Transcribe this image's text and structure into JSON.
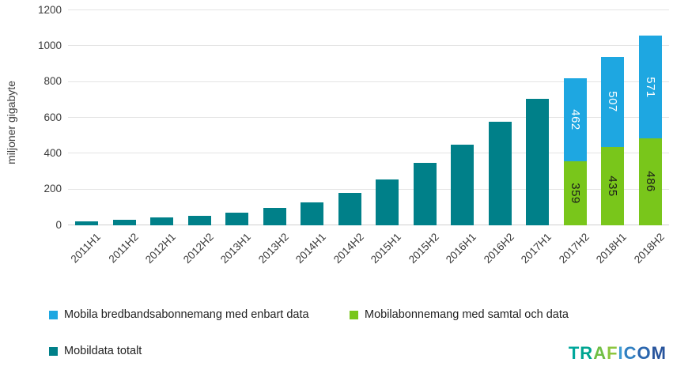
{
  "chart_data": {
    "type": "bar",
    "stacked": true,
    "title": "",
    "xlabel": "",
    "ylabel": "miljoner gigabyte",
    "ylim": [
      0,
      1200
    ],
    "yticks": [
      0,
      200,
      400,
      600,
      800,
      1000,
      1200
    ],
    "grid": true,
    "legend_position": "bottom-left",
    "categories": [
      "2011H1",
      "2011H2",
      "2012H1",
      "2012H2",
      "2013H1",
      "2013H2",
      "2014H1",
      "2014H2",
      "2015H1",
      "2015H2",
      "2016H1",
      "2016H2",
      "2017H1",
      "2017H2",
      "2018H1",
      "2018H2"
    ],
    "series": [
      {
        "name": "Mobildata totalt",
        "color": "#008089",
        "data_labels": false,
        "label_color": "#ffffff",
        "values": [
          21,
          33,
          43,
          53,
          71,
          97,
          127,
          179,
          256,
          347,
          450,
          578,
          707,
          null,
          null,
          null
        ]
      },
      {
        "name": "Mobilabonnemang med samtal och data",
        "color": "#79c61b",
        "data_labels": true,
        "label_color": "#1a1a1a",
        "values": [
          null,
          null,
          null,
          null,
          null,
          null,
          null,
          null,
          null,
          null,
          null,
          null,
          null,
          359,
          435,
          486
        ]
      },
      {
        "name": "Mobila bredbandsabonnemang med enbart data",
        "color": "#1ea7e1",
        "data_labels": true,
        "label_color": "#ffffff",
        "values": [
          null,
          null,
          null,
          null,
          null,
          null,
          null,
          null,
          null,
          null,
          null,
          null,
          null,
          462,
          507,
          571
        ]
      }
    ]
  },
  "legend": {
    "items": [
      {
        "label": "Mobila bredbandsabonnemang med enbart data",
        "color": "#1ea7e1"
      },
      {
        "label": "Mobilabonnemang med samtal och data",
        "color": "#79c61b"
      },
      {
        "label": "Mobildata totalt",
        "color": "#008089"
      }
    ]
  },
  "logo": {
    "name": "TRAFICOM",
    "letters": [
      {
        "char": "T",
        "color": "#00a79c"
      },
      {
        "char": "R",
        "color": "#00a591"
      },
      {
        "char": "A",
        "color": "#6fbf44"
      },
      {
        "char": "F",
        "color": "#8cc63f"
      },
      {
        "char": "I",
        "color": "#3d9bd4"
      },
      {
        "char": "C",
        "color": "#2f7fc1"
      },
      {
        "char": "O",
        "color": "#2a66ae"
      },
      {
        "char": "M",
        "color": "#28549c"
      }
    ]
  }
}
